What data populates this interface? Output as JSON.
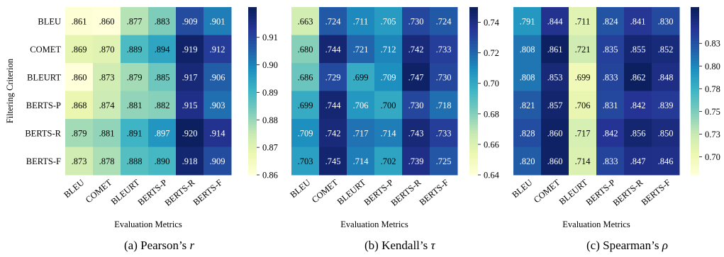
{
  "chart_data": [
    {
      "type": "heatmap",
      "caption": "(a) Pearson’s r",
      "caption_prefix": "(a) Pearson’s ",
      "caption_symbol": "r",
      "ylabel": "Filtering Criterion",
      "xlabel": "Evaluation Metrics",
      "rows": [
        "BLEU",
        "COMET",
        "BLEURT",
        "BERTS-P",
        "BERTS-R",
        "BERTS-F"
      ],
      "columns": [
        "BLEU",
        "COMET",
        "BLEURT",
        "BERTS-P",
        "BERTS-R",
        "BERTS-F"
      ],
      "values": [
        [
          0.861,
          0.86,
          0.877,
          0.883,
          0.909,
          0.901
        ],
        [
          0.869,
          0.87,
          0.889,
          0.894,
          0.919,
          0.912
        ],
        [
          0.86,
          0.873,
          0.879,
          0.885,
          0.917,
          0.906
        ],
        [
          0.868,
          0.874,
          0.881,
          0.882,
          0.915,
          0.903
        ],
        [
          0.879,
          0.881,
          0.891,
          0.897,
          0.92,
          0.914
        ],
        [
          0.873,
          0.878,
          0.888,
          0.89,
          0.918,
          0.909
        ]
      ],
      "cell_labels": [
        [
          ".861",
          ".860",
          ".877",
          ".883",
          ".909",
          ".901"
        ],
        [
          ".869",
          ".870",
          ".889",
          ".894",
          ".919",
          ".912"
        ],
        [
          ".860",
          ".873",
          ".879",
          ".885",
          ".917",
          ".906"
        ],
        [
          ".868",
          ".874",
          ".881",
          ".882",
          ".915",
          ".903"
        ],
        [
          ".879",
          ".881",
          ".891",
          ".897",
          ".920",
          ".914"
        ],
        [
          ".873",
          ".878",
          ".888",
          ".890",
          ".918",
          ".909"
        ]
      ],
      "colorbar": {
        "range": [
          0.86,
          0.921
        ],
        "ticks": [
          0.86,
          0.87,
          0.88,
          0.89,
          0.9,
          0.91
        ],
        "tick_labels": [
          "0.86",
          "0.87",
          "0.88",
          "0.89",
          "0.90",
          "0.91"
        ]
      },
      "colormap": "YlGnBu"
    },
    {
      "type": "heatmap",
      "caption": "(b) Kendall’s τ",
      "caption_prefix": "(b) Kendall’s ",
      "caption_symbol": "τ",
      "ylabel": "",
      "xlabel": "Evaluation Metrics",
      "rows": [
        "BLEU",
        "COMET",
        "BLEURT",
        "BERTS-P",
        "BERTS-R",
        "BERTS-F"
      ],
      "columns": [
        "BLEU",
        "COMET",
        "BLEURT",
        "BERTS-P",
        "BERTS-R",
        "BERTS-F"
      ],
      "values": [
        [
          0.663,
          0.724,
          0.711,
          0.705,
          0.73,
          0.724
        ],
        [
          0.68,
          0.744,
          0.721,
          0.712,
          0.742,
          0.733
        ],
        [
          0.686,
          0.729,
          0.699,
          0.709,
          0.747,
          0.73
        ],
        [
          0.699,
          0.744,
          0.706,
          0.7,
          0.73,
          0.718
        ],
        [
          0.709,
          0.742,
          0.717,
          0.714,
          0.743,
          0.733
        ],
        [
          0.703,
          0.745,
          0.714,
          0.702,
          0.739,
          0.725
        ]
      ],
      "cell_labels": [
        [
          ".663",
          ".724",
          ".711",
          ".705",
          ".730",
          ".724"
        ],
        [
          ".680",
          ".744",
          ".721",
          ".712",
          ".742",
          ".733"
        ],
        [
          ".686",
          ".729",
          ".699",
          ".709",
          ".747",
          ".730"
        ],
        [
          ".699",
          ".744",
          ".706",
          ".700",
          ".730",
          ".718"
        ],
        [
          ".709",
          ".742",
          ".717",
          ".714",
          ".743",
          ".733"
        ],
        [
          ".703",
          ".745",
          ".714",
          ".702",
          ".739",
          ".725"
        ]
      ],
      "colorbar": {
        "range": [
          0.64,
          0.75
        ],
        "ticks": [
          0.64,
          0.66,
          0.68,
          0.7,
          0.72,
          0.74
        ],
        "tick_labels": [
          "0.64",
          "0.66",
          "0.68",
          "0.70",
          "0.72",
          "0.74"
        ]
      },
      "colormap": "YlGnBu"
    },
    {
      "type": "heatmap",
      "caption": "(c) Spearman’s ρ",
      "caption_prefix": "(c) Spearman’s ",
      "caption_symbol": "ρ",
      "ylabel": "",
      "xlabel": "Evaluation Metrics",
      "rows": [
        "BLEU",
        "COMET",
        "BLEURT",
        "BERTS-P",
        "BERTS-R",
        "BERTS-F"
      ],
      "columns": [
        "BLEU",
        "COMET",
        "BLEURT",
        "BERTS-P",
        "BERTS-R",
        "BERTS-F"
      ],
      "values": [
        [
          0.791,
          0.844,
          0.711,
          0.824,
          0.841,
          0.83
        ],
        [
          0.808,
          0.861,
          0.721,
          0.835,
          0.855,
          0.852
        ],
        [
          0.808,
          0.853,
          0.699,
          0.833,
          0.862,
          0.848
        ],
        [
          0.821,
          0.857,
          0.706,
          0.831,
          0.842,
          0.839
        ],
        [
          0.828,
          0.86,
          0.717,
          0.842,
          0.856,
          0.85
        ],
        [
          0.82,
          0.86,
          0.714,
          0.833,
          0.847,
          0.846
        ]
      ],
      "cell_labels": [
        [
          ".791",
          ".844",
          ".711",
          ".824",
          ".841",
          ".830"
        ],
        [
          ".808",
          ".861",
          ".721",
          ".835",
          ".855",
          ".852"
        ],
        [
          ".808",
          ".853",
          ".699",
          ".833",
          ".862",
          ".848"
        ],
        [
          ".821",
          ".857",
          ".706",
          ".831",
          ".842",
          ".839"
        ],
        [
          ".828",
          ".860",
          ".717",
          ".842",
          ".856",
          ".850"
        ],
        [
          ".820",
          ".860",
          ".714",
          ".833",
          ".847",
          ".846"
        ]
      ],
      "colorbar": {
        "range": [
          0.68,
          0.865
        ],
        "ticks": [
          0.7,
          0.725,
          0.75,
          0.775,
          0.8,
          0.825
        ],
        "tick_labels": [
          "0.70",
          "0.73",
          "0.75",
          "0.78",
          "0.80",
          "0.83"
        ]
      },
      "colormap": "YlGnBu"
    }
  ]
}
